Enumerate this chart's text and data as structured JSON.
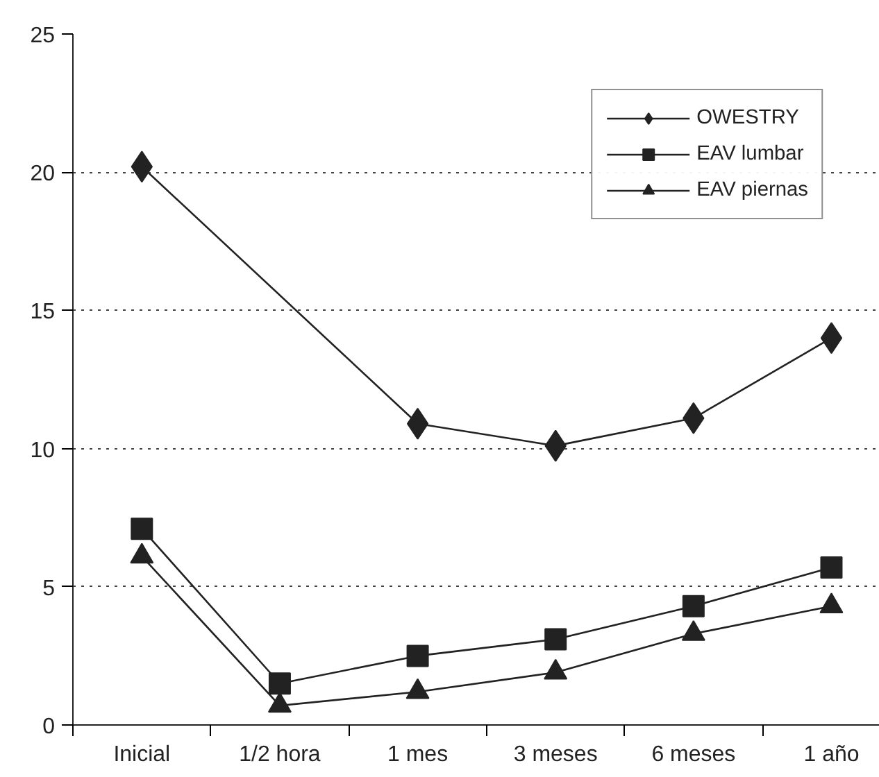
{
  "chart_data": {
    "type": "line",
    "categories": [
      "Inicial",
      "1/2 hora",
      "1 mes",
      "3 meses",
      "6 meses",
      "1 año"
    ],
    "series": [
      {
        "name": "OWESTRY",
        "color": "#222222",
        "marker": "diamond",
        "values": [
          20.2,
          null,
          10.9,
          10.1,
          11.1,
          14.0
        ]
      },
      {
        "name": "EAV lumbar",
        "color": "#222222",
        "marker": "square",
        "values": [
          7.1,
          1.5,
          2.5,
          3.1,
          4.3,
          5.7
        ]
      },
      {
        "name": "EAV piernas",
        "color": "#222222",
        "marker": "triangle",
        "values": [
          6.1,
          0.7,
          1.2,
          1.9,
          3.3,
          4.3
        ]
      }
    ],
    "ylim": [
      0,
      25
    ],
    "yticks": [
      0,
      5,
      10,
      15,
      20,
      25
    ],
    "grid": "y",
    "legend": "top right",
    "line_style": "solid"
  }
}
